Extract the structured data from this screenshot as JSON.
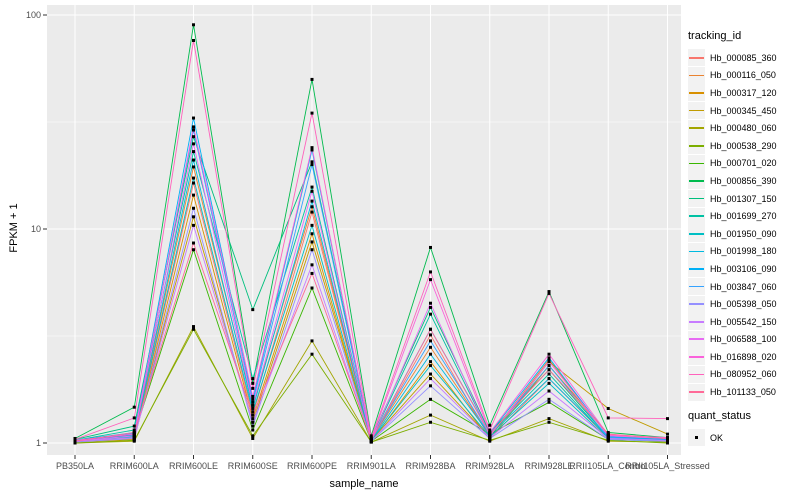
{
  "style": {
    "panel_bg": "#EBEBEB",
    "grid_color": "#FFFFFF",
    "tick_color": "#333333",
    "axis_text_color": "#4d4d4d",
    "point_color": "#000000",
    "legend_key_bg": "#F2F2F2"
  },
  "chart_data": {
    "type": "line",
    "xlabel": "sample_name",
    "ylabel": "FPKM + 1",
    "y_scale": "log10",
    "y_ticks": [
      "1",
      "10",
      "100"
    ],
    "y_tick_values": [
      1,
      10,
      100
    ],
    "y_minor_values": [
      3.1623,
      31.623
    ],
    "ylim_log": [
      1,
      111
    ],
    "grid": "on",
    "legend_position": "right",
    "legend": {
      "color_title": "tracking_id",
      "shape_title": "quant_status",
      "shape_entries": [
        "OK"
      ]
    },
    "categories": [
      "PB350LA",
      "RRIM600LA",
      "RRIM600LE",
      "RRIM600SE",
      "RRIM600PE",
      "RRIM901LA",
      "RRIM928BA",
      "RRIM928LA",
      "RRIM928LE",
      "RRII105LA_Control",
      "RRII105LA_Stressed"
    ],
    "series": [
      {
        "name": "Hb_000085_360",
        "color": "#F8766D",
        "values": [
          1.02,
          1.05,
          16.4,
          1.35,
          12.0,
          1.03,
          3.2,
          1.05,
          2.0,
          1.05,
          1.02
        ]
      },
      {
        "name": "Hb_000116_050",
        "color": "#EA8331",
        "values": [
          1.03,
          1.08,
          19.5,
          1.5,
          12.7,
          1.04,
          2.8,
          1.08,
          2.45,
          1.08,
          1.04
        ]
      },
      {
        "name": "Hb_000317_120",
        "color": "#D89000",
        "values": [
          1.01,
          1.04,
          14.4,
          1.3,
          9.5,
          1.02,
          2.4,
          1.04,
          2.3,
          1.1,
          1.03
        ]
      },
      {
        "name": "Hb_000345_450",
        "color": "#C09B00",
        "values": [
          1.02,
          1.06,
          11.4,
          1.25,
          8.7,
          1.03,
          2.1,
          1.06,
          2.4,
          1.45,
          1.1
        ]
      },
      {
        "name": "Hb_000480_060",
        "color": "#A3A500",
        "values": [
          1.0,
          1.02,
          3.5,
          1.05,
          3.0,
          1.01,
          1.35,
          1.02,
          1.3,
          1.02,
          1.01
        ]
      },
      {
        "name": "Hb_000538_290",
        "color": "#7CAE00",
        "values": [
          1.0,
          1.03,
          3.4,
          1.08,
          2.6,
          1.01,
          1.25,
          1.03,
          1.25,
          1.03,
          1.0
        ]
      },
      {
        "name": "Hb_000701_020",
        "color": "#39B600",
        "values": [
          1.01,
          1.1,
          8.0,
          1.15,
          5.3,
          1.02,
          1.6,
          1.1,
          1.55,
          1.04,
          1.02
        ]
      },
      {
        "name": "Hb_000856_390",
        "color": "#00BB4E",
        "values": [
          1.05,
          1.47,
          90.0,
          1.9,
          50.0,
          1.08,
          8.2,
          1.21,
          5.1,
          1.12,
          1.06
        ]
      },
      {
        "name": "Hb_001307_150",
        "color": "#00BF7D",
        "values": [
          1.04,
          1.2,
          27.0,
          4.2,
          20.6,
          1.05,
          4.3,
          1.12,
          2.2,
          1.06,
          1.04
        ]
      },
      {
        "name": "Hb_001699_270",
        "color": "#00C1A3",
        "values": [
          1.03,
          1.15,
          23.0,
          2.0,
          15.7,
          1.04,
          4.0,
          1.1,
          2.1,
          1.05,
          1.03
        ]
      },
      {
        "name": "Hb_001950_090",
        "color": "#00BFC4",
        "values": [
          1.02,
          1.07,
          17.3,
          1.4,
          10.4,
          1.03,
          2.3,
          1.07,
          1.9,
          1.04,
          1.02
        ]
      },
      {
        "name": "Hb_001998_180",
        "color": "#00BAE0",
        "values": [
          1.02,
          1.09,
          21.0,
          1.45,
          13.5,
          1.03,
          2.6,
          1.09,
          2.0,
          1.06,
          1.03
        ]
      },
      {
        "name": "Hb_003106_090",
        "color": "#00B0F6",
        "values": [
          1.03,
          1.12,
          33.0,
          1.6,
          23.4,
          1.04,
          3.4,
          1.11,
          2.5,
          1.07,
          1.04
        ]
      },
      {
        "name": "Hb_003847_060",
        "color": "#35A2FF",
        "values": [
          1.03,
          1.11,
          29.0,
          1.55,
          20.0,
          1.04,
          3.0,
          1.09,
          2.3,
          1.06,
          1.03
        ]
      },
      {
        "name": "Hb_005398_050",
        "color": "#9590FF",
        "values": [
          1.01,
          1.05,
          12.5,
          1.2,
          8.0,
          1.02,
          1.85,
          1.05,
          1.6,
          1.04,
          1.02
        ]
      },
      {
        "name": "Hb_005542_150",
        "color": "#C77CFF",
        "values": [
          1.02,
          1.06,
          10.4,
          1.25,
          6.8,
          1.02,
          2.0,
          1.06,
          1.75,
          1.05,
          1.03
        ]
      },
      {
        "name": "Hb_006588_100",
        "color": "#E76BF3",
        "values": [
          1.02,
          1.08,
          25.0,
          1.5,
          15.0,
          1.03,
          4.5,
          1.08,
          2.4,
          1.08,
          1.05
        ]
      },
      {
        "name": "Hb_016898_020",
        "color": "#FA62DB",
        "values": [
          1.03,
          1.1,
          30.0,
          1.65,
          24.0,
          1.04,
          5.8,
          1.12,
          2.6,
          1.09,
          1.06
        ]
      },
      {
        "name": "Hb_080952_060",
        "color": "#FF62BC",
        "values": [
          1.04,
          1.31,
          76.0,
          1.8,
          34.8,
          1.06,
          6.3,
          1.15,
          5.0,
          1.31,
          1.3
        ]
      },
      {
        "name": "Hb_101133_050",
        "color": "#FF6A98",
        "values": [
          1.02,
          1.12,
          8.6,
          1.35,
          6.2,
          1.03,
          3.4,
          1.1,
          2.2,
          1.1,
          1.05
        ]
      }
    ]
  }
}
